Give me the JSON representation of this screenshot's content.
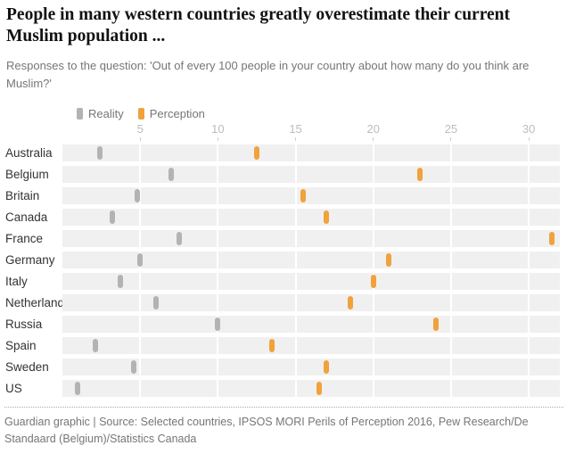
{
  "page": {
    "title": "People in many western countries greatly overestimate their current Muslim population ...",
    "subtitle": "Responses to the question: 'Out of every 100 people in your country about how many do you think are Muslim?'",
    "footer": "Guardian graphic | Source: Selected countries, IPSOS MORI Perils of Perception 2016, Pew Research/De Standaard (Belgium)/Statistics Canada"
  },
  "legend": {
    "reality_label": "Reality",
    "perception_label": "Perception"
  },
  "colors": {
    "title_text": "#121212",
    "muted_text": "#767676",
    "axis_text": "#bdbdbd",
    "country_text": "#333333",
    "row_background": "#f0f0f0",
    "reality": "#b3b3b3",
    "perception": "#f0a23c"
  },
  "chart_data": {
    "type": "scatter",
    "variant": "dot-strip (dumbbell without connector)",
    "title": "People in many western countries greatly overestimate their current Muslim population ...",
    "subtitle": "Responses to the question: 'Out of every 100 people in your country about how many do you think are Muslim?'",
    "categories": [
      "Australia",
      "Belgium",
      "Britain",
      "Canada",
      "France",
      "Germany",
      "Italy",
      "Netherlands",
      "Russia",
      "Spain",
      "Sweden",
      "US"
    ],
    "series": [
      {
        "name": "Reality",
        "color": "#b3b3b3",
        "values": [
          2.4,
          7,
          4.8,
          3.2,
          7.5,
          5,
          3.7,
          6,
          10,
          2.1,
          4.6,
          1
        ]
      },
      {
        "name": "Perception",
        "color": "#f0a23c",
        "values": [
          12.5,
          23,
          15.5,
          17,
          31.5,
          21,
          20,
          18.5,
          24,
          13.5,
          17,
          16.5
        ]
      }
    ],
    "xlabel": "",
    "ylabel": "",
    "xlim": [
      0,
      32
    ],
    "x_ticks": [
      5,
      10,
      15,
      20,
      25,
      30
    ],
    "x_tick_labels": [
      "5",
      "10",
      "15",
      "20",
      "25",
      "30"
    ],
    "grid": "white vertical gridlines at x ticks inside grey row strips",
    "legend_position": "top-left"
  }
}
